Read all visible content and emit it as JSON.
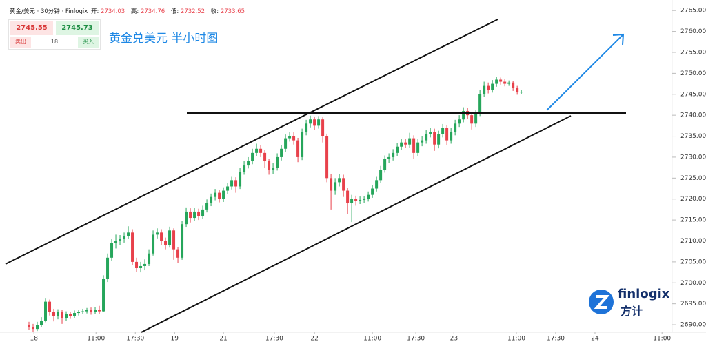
{
  "header": {
    "symbol": "黄金/美元 · 30分钟 · Finlogix",
    "ohlc": [
      {
        "label": "开:",
        "value": 2734.03
      },
      {
        "label": "高:",
        "value": 2734.76
      },
      {
        "label": "低:",
        "value": 2732.52
      },
      {
        "label": "收:",
        "value": 2733.65
      }
    ]
  },
  "quote": {
    "sell_price": 2745.55,
    "buy_price": 2745.73,
    "sell_label": "卖出",
    "volume": 18,
    "buy_label": "买入"
  },
  "logo": {
    "brand": "finlogix",
    "cn": "方计"
  },
  "chart_data": {
    "type": "candlestick",
    "title": "黄金兑美元 半小时图",
    "up_color": "#26a65b",
    "down_color": "#e8414b",
    "xlim": [
      0,
      160.8
    ],
    "ylim": [
      2688.2,
      2767.5
    ],
    "xticks": [
      {
        "value": 8.2,
        "label": "18"
      },
      {
        "value": 23.2,
        "label": "11:00"
      },
      {
        "value": 32.7,
        "label": "17:30"
      },
      {
        "value": 42.2,
        "label": "19"
      },
      {
        "value": 54,
        "label": "21"
      },
      {
        "value": 66.3,
        "label": "17:30"
      },
      {
        "value": 76,
        "label": "22"
      },
      {
        "value": 90,
        "label": "11:00"
      },
      {
        "value": 100.5,
        "label": "17:30"
      },
      {
        "value": 109.7,
        "label": "23"
      },
      {
        "value": 124.8,
        "label": "11:00"
      },
      {
        "value": 134.3,
        "label": "17:30"
      },
      {
        "value": 143.8,
        "label": "24"
      },
      {
        "value": 160,
        "label": "11:00"
      }
    ],
    "yticks": [
      {
        "value": 2690,
        "label": "2690.00"
      },
      {
        "value": 2695,
        "label": "2695.00"
      },
      {
        "value": 2700,
        "label": "2700.00"
      },
      {
        "value": 2705,
        "label": "2705.00"
      },
      {
        "value": 2710,
        "label": "2710.00"
      },
      {
        "value": 2715,
        "label": "2715.00"
      },
      {
        "value": 2720,
        "label": "2720.00"
      },
      {
        "value": 2725,
        "label": "2725.00"
      },
      {
        "value": 2730,
        "label": "2730.00"
      },
      {
        "value": 2735,
        "label": "2735.00"
      },
      {
        "value": 2740,
        "label": "2740.00"
      },
      {
        "value": 2745,
        "label": "2745.00"
      },
      {
        "value": 2750,
        "label": "2750.00"
      },
      {
        "value": 2755,
        "label": "2755.00"
      },
      {
        "value": 2760,
        "label": "2760.00"
      },
      {
        "value": 2765,
        "label": "2765.00"
      }
    ],
    "x": [
      7,
      8,
      9,
      10,
      11,
      12,
      13,
      14,
      15,
      16,
      17,
      18,
      19,
      20,
      21,
      22,
      23,
      24,
      25,
      26,
      27,
      28,
      29,
      30,
      31,
      32,
      33,
      34,
      35,
      36,
      37,
      38,
      39,
      40,
      41,
      42,
      43,
      44,
      45,
      46,
      47,
      48,
      49,
      50,
      51,
      52,
      53,
      54,
      55,
      56,
      57,
      58,
      59,
      60,
      61,
      62,
      63,
      64,
      65,
      66,
      67,
      68,
      69,
      70,
      71,
      72,
      73,
      74,
      75,
      76,
      77,
      78,
      79,
      80,
      81,
      82,
      83,
      84,
      85,
      86,
      87,
      88,
      89,
      90,
      91,
      92,
      93,
      94,
      95,
      96,
      97,
      98,
      99,
      100,
      101,
      102,
      103,
      104,
      105,
      106,
      107,
      108,
      109,
      110,
      111,
      112,
      113,
      114,
      115,
      116,
      117,
      118,
      119,
      120,
      121,
      122,
      123,
      124,
      125,
      126
    ],
    "open": [
      2690,
      2689.5,
      2689,
      2690,
      2691,
      2695.5,
      2693,
      2692,
      2693,
      2691.5,
      2692.5,
      2692,
      2692.8,
      2693,
      2693.2,
      2693.5,
      2693,
      2693.6,
      2693.2,
      2701,
      2706,
      2709.5,
      2710,
      2710.5,
      2711.2,
      2712,
      2705,
      2703.5,
      2704,
      2704.5,
      2707,
      2711.5,
      2712,
      2710,
      2709,
      2712.5,
      2708,
      2706,
      2714,
      2717,
      2715.5,
      2717,
      2716,
      2717.5,
      2719,
      2720.5,
      2721.5,
      2720,
      2722,
      2723,
      2724.5,
      2723,
      2726.5,
      2728,
      2729,
      2731,
      2732,
      2731,
      2729,
      2727,
      2727.5,
      2730,
      2732,
      2734.5,
      2735,
      2734,
      2730,
      2736,
      2738,
      2739,
      2737.5,
      2739,
      2735,
      2725,
      2722,
      2724,
      2725,
      2722,
      2719,
      2720,
      2719.5,
      2719.8,
      2720,
      2721,
      2722.5,
      2724.5,
      2727,
      2729.5,
      2730,
      2731,
      2732.5,
      2733.5,
      2733,
      2734.5,
      2731,
      2733.5,
      2734,
      2735.5,
      2736,
      2733,
      2735.5,
      2737,
      2734,
      2736,
      2738,
      2739,
      2741,
      2740,
      2738,
      2740.5,
      2745,
      2747,
      2746,
      2747.5,
      2748.5,
      2748,
      2747.5,
      2747.8,
      2746.5,
      2745.5
    ],
    "high": [
      2690.7,
      2690.2,
      2690.7,
      2691.8,
      2696.4,
      2696,
      2693.8,
      2693.7,
      2693.5,
      2693.2,
      2693.1,
      2693.4,
      2693.6,
      2693.8,
      2694,
      2694.1,
      2694.2,
      2694.5,
      2701.8,
      2707,
      2710.5,
      2711.5,
      2711.4,
      2712,
      2713.5,
      2712.8,
      2706,
      2705,
      2705.6,
      2708,
      2712.5,
      2713,
      2712.8,
      2710.8,
      2713.4,
      2713,
      2708.6,
      2714.8,
      2718,
      2717.8,
      2717.9,
      2717.7,
      2718.4,
      2719.9,
      2721.3,
      2722.4,
      2722.2,
      2722.8,
      2723.9,
      2725.3,
      2725.2,
      2727.4,
      2729,
      2730,
      2732,
      2733.2,
      2732.8,
      2731.7,
      2729.6,
      2728.6,
      2730.9,
      2732.9,
      2735.4,
      2736,
      2735.9,
      2734.6,
      2736.8,
      2738.9,
      2739.9,
      2739.7,
      2739.8,
      2739.5,
      2735.6,
      2726,
      2725,
      2726,
      2725.8,
      2722.6,
      2721,
      2720.8,
      2720.6,
      2720.7,
      2721.8,
      2723.4,
      2725.3,
      2727.9,
      2730.4,
      2730.9,
      2731.9,
      2733.4,
      2734.4,
      2734.3,
      2735.8,
      2735.2,
      2734.4,
      2735,
      2736.4,
      2737,
      2736.8,
      2736.3,
      2737.9,
      2737.7,
      2736.9,
      2738.9,
      2740,
      2741.9,
      2741.8,
      2740.7,
      2741.3,
      2746,
      2748,
      2747.8,
      2748.4,
      2749.1,
      2749,
      2748.6,
      2748.3,
      2748.2,
      2747,
      2746
    ],
    "low": [
      2688.8,
      2688.3,
      2688.5,
      2689.5,
      2690.6,
      2692.2,
      2690.8,
      2691.3,
      2690.2,
      2690.9,
      2691.4,
      2691.5,
      2692.2,
      2692.5,
      2692.7,
      2692.4,
      2692.5,
      2692.6,
      2693,
      2700.2,
      2705.2,
      2708.2,
      2709,
      2709.6,
      2710.5,
      2704.2,
      2702.6,
      2702.5,
      2703,
      2704,
      2706.5,
      2710.6,
      2709,
      2708,
      2708.4,
      2705.5,
      2704.8,
      2705.5,
      2713.2,
      2714.4,
      2714.8,
      2715,
      2715.2,
      2716.8,
      2718.3,
      2719.7,
      2719.2,
      2719.3,
      2721.2,
      2722.3,
      2721.5,
      2722.4,
      2725.8,
      2727.3,
      2728.3,
      2730.2,
      2730,
      2727.5,
      2725.8,
      2726,
      2726.8,
      2729.2,
      2731.3,
      2733.7,
      2733,
      2728.8,
      2729.3,
      2735.2,
      2737.1,
      2736.5,
      2736.8,
      2733.5,
      2724,
      2717.5,
      2721,
      2723,
      2720.5,
      2716.5,
      2714.5,
      2718.4,
      2718.8,
      2719,
      2719.4,
      2720.3,
      2721.8,
      2723.8,
      2726.3,
      2728.6,
      2729.2,
      2730.3,
      2731.7,
      2732.2,
      2732.3,
      2729.5,
      2730.2,
      2732.6,
      2733.2,
      2734.7,
      2731.5,
      2732.1,
      2734.7,
      2732.8,
      2733.2,
      2735.2,
      2737.2,
      2738.3,
      2739.2,
      2736.6,
      2737.2,
      2739.8,
      2744.3,
      2745.2,
      2745.4,
      2746.8,
      2747.3,
      2746.9,
      2747,
      2745.8,
      2744.9,
      2745.1
    ],
    "close": [
      2689.5,
      2689,
      2690,
      2691,
      2695.5,
      2693,
      2692,
      2693,
      2691.5,
      2692.5,
      2692,
      2692.8,
      2693,
      2693.2,
      2693.5,
      2693,
      2693.6,
      2693.2,
      2701,
      2706,
      2709.5,
      2710,
      2710.5,
      2711.2,
      2712,
      2705,
      2703.5,
      2704,
      2704.5,
      2707,
      2711.5,
      2712,
      2710,
      2709,
      2712.5,
      2708,
      2706,
      2714,
      2717,
      2715.5,
      2717,
      2716,
      2717.5,
      2719,
      2720.5,
      2721.5,
      2720,
      2722,
      2723,
      2724.5,
      2723,
      2726.5,
      2728,
      2729,
      2731,
      2732,
      2731,
      2729,
      2727,
      2727.5,
      2730,
      2732,
      2734.5,
      2735,
      2734,
      2730,
      2736,
      2738,
      2739,
      2737.5,
      2739,
      2735,
      2725,
      2722,
      2724,
      2725,
      2722,
      2719,
      2720,
      2719.5,
      2719.8,
      2720,
      2721,
      2722.5,
      2724.5,
      2727,
      2729.5,
      2730,
      2731,
      2732.5,
      2733.5,
      2733,
      2734.5,
      2731,
      2733.5,
      2734,
      2735.5,
      2736,
      2733,
      2735.5,
      2737,
      2734,
      2736,
      2738,
      2739,
      2741,
      2740,
      2738,
      2740.5,
      2745,
      2747,
      2746,
      2747.5,
      2748.5,
      2748,
      2747.5,
      2747.8,
      2746.5,
      2745.5,
      2745.6
    ]
  }
}
